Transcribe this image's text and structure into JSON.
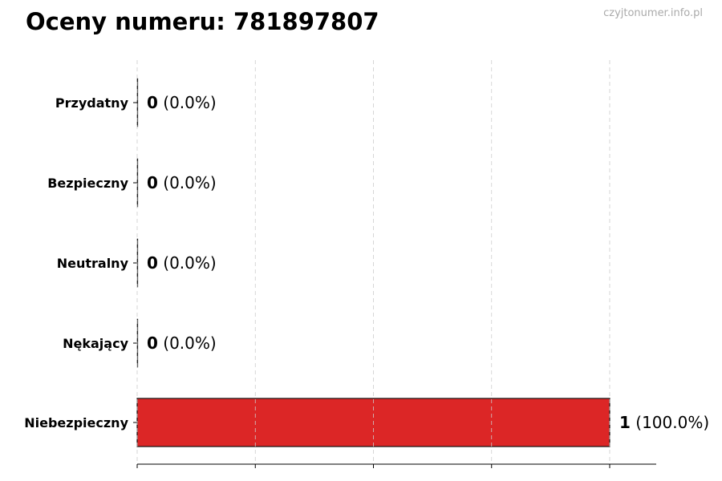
{
  "chart_data": {
    "type": "bar",
    "orientation": "horizontal",
    "title": "Oceny numeru: 781897807",
    "watermark": "czyjtonumer.info.pl",
    "categories": [
      "Przydatny",
      "Bezpieczny",
      "Neutralny",
      "Nękający",
      "Niebezpieczny"
    ],
    "values": [
      0,
      0,
      0,
      0,
      1
    ],
    "percent_labels": [
      "(0.0%)",
      "(0.0%)",
      "(0.0%)",
      "(0.0%)",
      "(100.0%)"
    ],
    "colors": [
      "#22c55e",
      "#22c55e",
      "#9ca3af",
      "#f97316",
      "#dc2626"
    ],
    "xlim": [
      0,
      1.1
    ],
    "xticks": [
      0,
      0.25,
      0.5,
      0.75,
      1.0
    ],
    "grid": "vertical dashed",
    "xlabel": "",
    "ylabel": ""
  }
}
